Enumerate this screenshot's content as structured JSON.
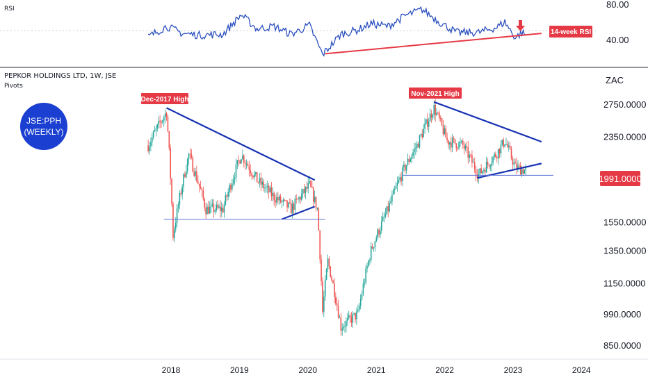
{
  "header": {
    "rsi_label": "RSI",
    "title": "PEPKOR HOLDINGS LTD, 1W, JSE",
    "indicator": "Pivots",
    "currency": "ZAC"
  },
  "badge": {
    "line1": "JSE:PPH",
    "line2": "(WEEKLY)",
    "color": "#1a3fd1"
  },
  "annotations": {
    "dec2017": "Dec-2017 High",
    "nov2021": "Nov-2021 High",
    "rsi_callout": "14-week RSI"
  },
  "colors": {
    "up": "#26a69a",
    "down": "#ef5350",
    "trend": "#1732b3",
    "support": "#5b6fd6",
    "rsi_line": "#2a4fbf",
    "rsi_trend": "#e53945",
    "label_bg": "#e53945"
  },
  "chart_data": {
    "type": "candlestick",
    "price_axis": {
      "ticks": [
        "2750.0000",
        "2350.0000",
        "1550.0000",
        "1350.0000",
        "1150.0000",
        "990.0000",
        "850.0000"
      ],
      "ylim": [
        800,
        2900
      ],
      "last_price": "1991.0000"
    },
    "rsi_axis": {
      "ticks": [
        "80.00",
        "40.00"
      ],
      "ylim": [
        20,
        95
      ],
      "midline": 50
    },
    "time_axis": {
      "ticks": [
        "2018",
        "2019",
        "2020",
        "2021",
        "2022",
        "2023",
        "2024"
      ]
    },
    "anchors": [
      {
        "date": "2017-09-01",
        "price": 2250
      },
      {
        "date": "2017-12-08",
        "price": 2650
      },
      {
        "date": "2018-01-12",
        "price": 1450
      },
      {
        "date": "2018-04-06",
        "price": 2150
      },
      {
        "date": "2018-07-06",
        "price": 1650
      },
      {
        "date": "2018-10-05",
        "price": 1650
      },
      {
        "date": "2019-01-11",
        "price": 2150
      },
      {
        "date": "2019-04-05",
        "price": 1900
      },
      {
        "date": "2019-07-05",
        "price": 1750
      },
      {
        "date": "2019-10-04",
        "price": 1650
      },
      {
        "date": "2020-01-10",
        "price": 1850
      },
      {
        "date": "2020-02-21",
        "price": 1650
      },
      {
        "date": "2020-03-20",
        "price": 1000
      },
      {
        "date": "2020-04-17",
        "price": 1280
      },
      {
        "date": "2020-06-26",
        "price": 930
      },
      {
        "date": "2020-09-25",
        "price": 990
      },
      {
        "date": "2020-12-04",
        "price": 1350
      },
      {
        "date": "2021-03-05",
        "price": 1650
      },
      {
        "date": "2021-05-28",
        "price": 2000
      },
      {
        "date": "2021-08-06",
        "price": 2250
      },
      {
        "date": "2021-11-05",
        "price": 2700
      },
      {
        "date": "2022-01-14",
        "price": 2300
      },
      {
        "date": "2022-04-08",
        "price": 2250
      },
      {
        "date": "2022-07-01",
        "price": 1950
      },
      {
        "date": "2022-09-30",
        "price": 2150
      },
      {
        "date": "2022-11-18",
        "price": 2300
      },
      {
        "date": "2023-01-13",
        "price": 2020
      },
      {
        "date": "2023-03-10",
        "price": 1991
      }
    ],
    "rsi_anchors": [
      {
        "date": "2017-09-01",
        "rsi": 43
      },
      {
        "date": "2017-12-08",
        "rsi": 55
      },
      {
        "date": "2018-03-02",
        "rsi": 47
      },
      {
        "date": "2018-06-01",
        "rsi": 45
      },
      {
        "date": "2018-10-05",
        "rsi": 46
      },
      {
        "date": "2019-01-11",
        "rsi": 68
      },
      {
        "date": "2019-04-05",
        "rsi": 52
      },
      {
        "date": "2019-07-05",
        "rsi": 55
      },
      {
        "date": "2019-10-04",
        "rsi": 46
      },
      {
        "date": "2020-01-10",
        "rsi": 56
      },
      {
        "date": "2020-03-20",
        "rsi": 23
      },
      {
        "date": "2020-06-26",
        "rsi": 46
      },
      {
        "date": "2020-09-25",
        "rsi": 51
      },
      {
        "date": "2020-12-04",
        "rsi": 58
      },
      {
        "date": "2021-03-05",
        "rsi": 55
      },
      {
        "date": "2021-06-04",
        "rsi": 67
      },
      {
        "date": "2021-09-03",
        "rsi": 74
      },
      {
        "date": "2021-12-03",
        "rsi": 60
      },
      {
        "date": "2022-03-04",
        "rsi": 48
      },
      {
        "date": "2022-07-01",
        "rsi": 48
      },
      {
        "date": "2022-10-07",
        "rsi": 54
      },
      {
        "date": "2022-11-18",
        "rsi": 60
      },
      {
        "date": "2023-01-13",
        "rsi": 42
      },
      {
        "date": "2023-02-17",
        "rsi": 48
      },
      {
        "date": "2023-03-10",
        "rsi": 45
      }
    ],
    "trendlines": [
      {
        "name": "dec2017-resistance",
        "from": {
          "date": "2017-12-08",
          "price": 2700
        },
        "to": {
          "date": "2020-02-07",
          "price": 1900
        },
        "color": "trend"
      },
      {
        "name": "2019-support-rising",
        "from": {
          "date": "2019-08-16",
          "price": 1570
        },
        "to": {
          "date": "2020-02-07",
          "price": 1670
        },
        "color": "trend"
      },
      {
        "name": "2018-support-horizontal",
        "from": {
          "date": "2017-11-24",
          "price": 1570
        },
        "to": {
          "date": "2020-04-03",
          "price": 1570
        },
        "color": "support"
      },
      {
        "name": "nov2021-resistance",
        "from": {
          "date": "2021-11-05",
          "price": 2780
        },
        "to": {
          "date": "2023-06-02",
          "price": 2290
        },
        "color": "trend"
      },
      {
        "name": "2022-support-rising",
        "from": {
          "date": "2022-06-24",
          "price": 1920
        },
        "to": {
          "date": "2023-06-02",
          "price": 2060
        },
        "color": "trend"
      },
      {
        "name": "2021-support-horizontal",
        "from": {
          "date": "2021-05-21",
          "price": 1945
        },
        "to": {
          "date": "2023-08-04",
          "price": 1945
        },
        "color": "support"
      }
    ],
    "rsi_trendline": {
      "from": {
        "date": "2020-04-03",
        "rsi": 24
      },
      "to": {
        "date": "2023-06-02",
        "rsi": 47
      }
    }
  }
}
